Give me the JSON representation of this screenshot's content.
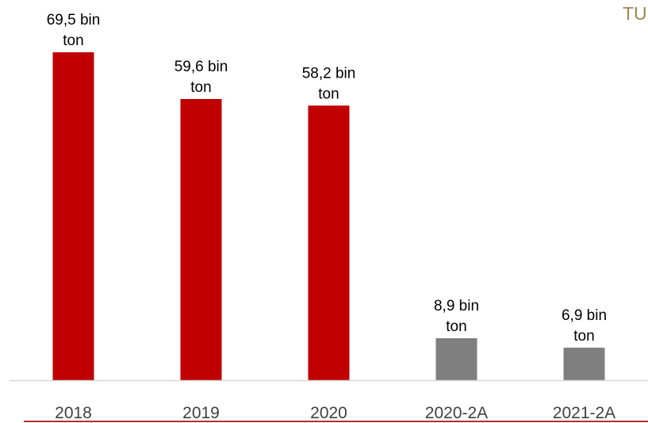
{
  "corner_text": "TU",
  "colors": {
    "annual_bar": "#c00000",
    "half_year_bar": "#7f7f7f",
    "axis_line": "#d9d9d9",
    "bottom_rule": "#b03030"
  },
  "chart_data": {
    "type": "bar",
    "title": "",
    "xlabel": "",
    "ylabel": "",
    "categories": [
      "2018",
      "2019",
      "2020",
      "2020-2A",
      "2021-2A"
    ],
    "values": [
      69.5,
      59.6,
      58.2,
      8.9,
      6.9
    ],
    "value_labels": [
      [
        "69,5 bin",
        "ton"
      ],
      [
        "59,6 bin",
        "ton"
      ],
      [
        "58,2 bin",
        "ton"
      ],
      [
        "8,9 bin",
        "ton"
      ],
      [
        "6,9 bin",
        "ton"
      ]
    ],
    "bar_colors": [
      "#c00000",
      "#c00000",
      "#c00000",
      "#7f7f7f",
      "#7f7f7f"
    ],
    "ylim": [
      0,
      69.5
    ],
    "grid": false,
    "legend": "none"
  }
}
